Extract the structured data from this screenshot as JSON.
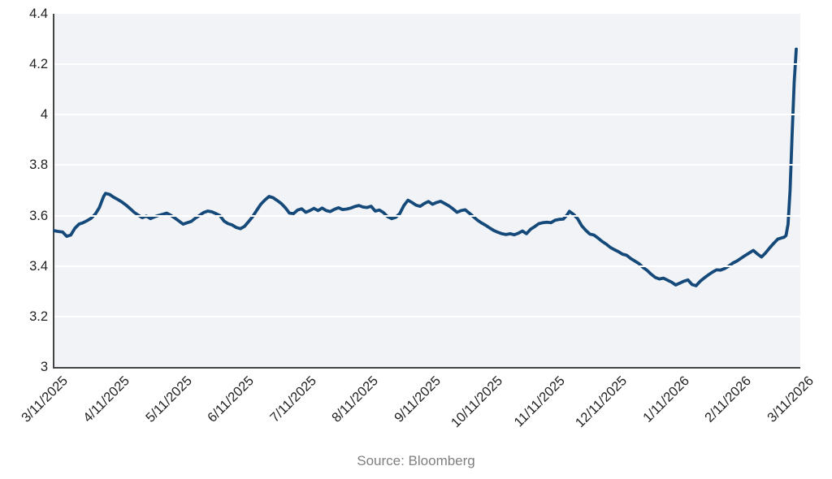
{
  "footer": {
    "source_label": "Source: Bloomberg"
  },
  "colors": {
    "line": "#14497a",
    "plot_background": "#f1f3f6",
    "grid": "#ffffff",
    "axis_spine": "#454545",
    "tick_label": "#222222",
    "source_text": "#7f7f7f",
    "page_background": "#ffffff"
  },
  "chart_data": {
    "type": "line",
    "title": "",
    "xlabel": "",
    "ylabel": "",
    "legend": "none",
    "grid": "horizontal-white-on-light-panel",
    "ylim": [
      3,
      4.4
    ],
    "ytick_values": [
      3,
      3.2,
      3.4,
      3.6,
      3.8,
      4,
      4.2,
      4.4
    ],
    "ytick_labels": [
      "3",
      "3.2",
      "3.4",
      "3.6",
      "3.8",
      "4",
      "4.2",
      "4.4"
    ],
    "grid_values": [
      3.2,
      3.4,
      3.6,
      3.8,
      4,
      4.2
    ],
    "x_range": [
      "2025-03-11",
      "2026-03-11"
    ],
    "xtick_labels": [
      "3/11/2025",
      "4/11/2025",
      "5/11/2025",
      "6/11/2025",
      "7/11/2025",
      "8/11/2025",
      "9/11/2025",
      "10/11/2025",
      "11/11/2025",
      "12/11/2025",
      "1/11/2026",
      "2/11/2026",
      "3/11/2026"
    ],
    "series": [
      {
        "name": "",
        "color": "#14497a",
        "stroke_width": 3.8,
        "points": [
          [
            "2025-03-11",
            3.54
          ],
          [
            "2025-03-13",
            3.537
          ],
          [
            "2025-03-15",
            3.535
          ],
          [
            "2025-03-17",
            3.518
          ],
          [
            "2025-03-19",
            3.523
          ],
          [
            "2025-03-21",
            3.55
          ],
          [
            "2025-03-23",
            3.566
          ],
          [
            "2025-03-25",
            3.572
          ],
          [
            "2025-03-27",
            3.58
          ],
          [
            "2025-03-29",
            3.59
          ],
          [
            "2025-03-31",
            3.606
          ],
          [
            "2025-04-02",
            3.632
          ],
          [
            "2025-04-04",
            3.675
          ],
          [
            "2025-04-05",
            3.688
          ],
          [
            "2025-04-07",
            3.684
          ],
          [
            "2025-04-09",
            3.673
          ],
          [
            "2025-04-11",
            3.664
          ],
          [
            "2025-04-13",
            3.654
          ],
          [
            "2025-04-15",
            3.642
          ],
          [
            "2025-04-17",
            3.628
          ],
          [
            "2025-04-19",
            3.613
          ],
          [
            "2025-04-21",
            3.602
          ],
          [
            "2025-04-23",
            3.592
          ],
          [
            "2025-04-25",
            3.598
          ],
          [
            "2025-04-27",
            3.588
          ],
          [
            "2025-04-29",
            3.595
          ],
          [
            "2025-05-01",
            3.601
          ],
          [
            "2025-05-03",
            3.605
          ],
          [
            "2025-05-05",
            3.61
          ],
          [
            "2025-05-07",
            3.601
          ],
          [
            "2025-05-09",
            3.59
          ],
          [
            "2025-05-11",
            3.578
          ],
          [
            "2025-05-13",
            3.566
          ],
          [
            "2025-05-15",
            3.572
          ],
          [
            "2025-05-17",
            3.577
          ],
          [
            "2025-05-19",
            3.59
          ],
          [
            "2025-05-21",
            3.601
          ],
          [
            "2025-05-23",
            3.612
          ],
          [
            "2025-05-25",
            3.618
          ],
          [
            "2025-05-27",
            3.615
          ],
          [
            "2025-05-29",
            3.608
          ],
          [
            "2025-05-31",
            3.6
          ],
          [
            "2025-06-02",
            3.578
          ],
          [
            "2025-06-04",
            3.568
          ],
          [
            "2025-06-06",
            3.563
          ],
          [
            "2025-06-08",
            3.553
          ],
          [
            "2025-06-10",
            3.548
          ],
          [
            "2025-06-12",
            3.557
          ],
          [
            "2025-06-14",
            3.576
          ],
          [
            "2025-06-16",
            3.596
          ],
          [
            "2025-06-18",
            3.621
          ],
          [
            "2025-06-20",
            3.645
          ],
          [
            "2025-06-22",
            3.662
          ],
          [
            "2025-06-24",
            3.676
          ],
          [
            "2025-06-26",
            3.671
          ],
          [
            "2025-06-28",
            3.66
          ],
          [
            "2025-06-30",
            3.648
          ],
          [
            "2025-07-02",
            3.631
          ],
          [
            "2025-07-04",
            3.61
          ],
          [
            "2025-07-06",
            3.608
          ],
          [
            "2025-07-08",
            3.622
          ],
          [
            "2025-07-10",
            3.627
          ],
          [
            "2025-07-12",
            3.613
          ],
          [
            "2025-07-14",
            3.62
          ],
          [
            "2025-07-16",
            3.629
          ],
          [
            "2025-07-18",
            3.62
          ],
          [
            "2025-07-20",
            3.63
          ],
          [
            "2025-07-22",
            3.62
          ],
          [
            "2025-07-24",
            3.616
          ],
          [
            "2025-07-26",
            3.625
          ],
          [
            "2025-07-28",
            3.631
          ],
          [
            "2025-07-30",
            3.624
          ],
          [
            "2025-08-01",
            3.626
          ],
          [
            "2025-08-03",
            3.63
          ],
          [
            "2025-08-05",
            3.636
          ],
          [
            "2025-08-07",
            3.64
          ],
          [
            "2025-08-09",
            3.634
          ],
          [
            "2025-08-11",
            3.632
          ],
          [
            "2025-08-13",
            3.637
          ],
          [
            "2025-08-15",
            3.618
          ],
          [
            "2025-08-17",
            3.622
          ],
          [
            "2025-08-19",
            3.612
          ],
          [
            "2025-08-21",
            3.596
          ],
          [
            "2025-08-23",
            3.588
          ],
          [
            "2025-08-25",
            3.593
          ],
          [
            "2025-08-27",
            3.608
          ],
          [
            "2025-08-29",
            3.64
          ],
          [
            "2025-08-31",
            3.661
          ],
          [
            "2025-09-02",
            3.652
          ],
          [
            "2025-09-04",
            3.641
          ],
          [
            "2025-09-06",
            3.637
          ],
          [
            "2025-09-08",
            3.648
          ],
          [
            "2025-09-10",
            3.656
          ],
          [
            "2025-09-12",
            3.645
          ],
          [
            "2025-09-14",
            3.652
          ],
          [
            "2025-09-16",
            3.657
          ],
          [
            "2025-09-18",
            3.648
          ],
          [
            "2025-09-20",
            3.639
          ],
          [
            "2025-09-22",
            3.627
          ],
          [
            "2025-09-24",
            3.613
          ],
          [
            "2025-09-26",
            3.62
          ],
          [
            "2025-09-28",
            3.623
          ],
          [
            "2025-09-30",
            3.61
          ],
          [
            "2025-10-02",
            3.596
          ],
          [
            "2025-10-04",
            3.582
          ],
          [
            "2025-10-06",
            3.571
          ],
          [
            "2025-10-08",
            3.562
          ],
          [
            "2025-10-10",
            3.551
          ],
          [
            "2025-10-12",
            3.541
          ],
          [
            "2025-10-14",
            3.534
          ],
          [
            "2025-10-16",
            3.528
          ],
          [
            "2025-10-18",
            3.525
          ],
          [
            "2025-10-20",
            3.528
          ],
          [
            "2025-10-22",
            3.524
          ],
          [
            "2025-10-24",
            3.53
          ],
          [
            "2025-10-26",
            3.539
          ],
          [
            "2025-10-28",
            3.528
          ],
          [
            "2025-10-30",
            3.546
          ],
          [
            "2025-11-01",
            3.556
          ],
          [
            "2025-11-03",
            3.568
          ],
          [
            "2025-11-05",
            3.572
          ],
          [
            "2025-11-07",
            3.574
          ],
          [
            "2025-11-09",
            3.572
          ],
          [
            "2025-11-11",
            3.582
          ],
          [
            "2025-11-13",
            3.585
          ],
          [
            "2025-11-15",
            3.586
          ],
          [
            "2025-11-17",
            3.604
          ],
          [
            "2025-11-18",
            3.617
          ],
          [
            "2025-11-20",
            3.605
          ],
          [
            "2025-11-22",
            3.588
          ],
          [
            "2025-11-24",
            3.56
          ],
          [
            "2025-11-26",
            3.542
          ],
          [
            "2025-11-28",
            3.527
          ],
          [
            "2025-11-30",
            3.523
          ],
          [
            "2025-12-02",
            3.511
          ],
          [
            "2025-12-04",
            3.498
          ],
          [
            "2025-12-06",
            3.487
          ],
          [
            "2025-12-08",
            3.474
          ],
          [
            "2025-12-10",
            3.465
          ],
          [
            "2025-12-12",
            3.457
          ],
          [
            "2025-12-14",
            3.447
          ],
          [
            "2025-12-16",
            3.443
          ],
          [
            "2025-12-18",
            3.43
          ],
          [
            "2025-12-20",
            3.42
          ],
          [
            "2025-12-22",
            3.41
          ],
          [
            "2025-12-24",
            3.395
          ],
          [
            "2025-12-26",
            3.383
          ],
          [
            "2025-12-28",
            3.368
          ],
          [
            "2025-12-30",
            3.355
          ],
          [
            "2026-01-01",
            3.349
          ],
          [
            "2026-01-03",
            3.352
          ],
          [
            "2026-01-05",
            3.344
          ],
          [
            "2026-01-07",
            3.336
          ],
          [
            "2026-01-09",
            3.325
          ],
          [
            "2026-01-11",
            3.332
          ],
          [
            "2026-01-13",
            3.34
          ],
          [
            "2026-01-15",
            3.345
          ],
          [
            "2026-01-17",
            3.327
          ],
          [
            "2026-01-19",
            3.322
          ],
          [
            "2026-01-21",
            3.34
          ],
          [
            "2026-01-23",
            3.353
          ],
          [
            "2026-01-25",
            3.365
          ],
          [
            "2026-01-27",
            3.376
          ],
          [
            "2026-01-29",
            3.385
          ],
          [
            "2026-01-31",
            3.384
          ],
          [
            "2026-02-02",
            3.39
          ],
          [
            "2026-02-04",
            3.4
          ],
          [
            "2026-02-06",
            3.412
          ],
          [
            "2026-02-08",
            3.42
          ],
          [
            "2026-02-10",
            3.431
          ],
          [
            "2026-02-12",
            3.442
          ],
          [
            "2026-02-14",
            3.452
          ],
          [
            "2026-02-16",
            3.462
          ],
          [
            "2026-02-18",
            3.448
          ],
          [
            "2026-02-20",
            3.436
          ],
          [
            "2026-02-22",
            3.452
          ],
          [
            "2026-02-24",
            3.472
          ],
          [
            "2026-02-26",
            3.49
          ],
          [
            "2026-02-28",
            3.507
          ],
          [
            "2026-03-02",
            3.512
          ],
          [
            "2026-03-03",
            3.514
          ],
          [
            "2026-03-04",
            3.521
          ],
          [
            "2026-03-05",
            3.565
          ],
          [
            "2026-03-06",
            3.7
          ],
          [
            "2026-03-07",
            3.92
          ],
          [
            "2026-03-08",
            4.13
          ],
          [
            "2026-03-09",
            4.26
          ]
        ]
      }
    ]
  }
}
